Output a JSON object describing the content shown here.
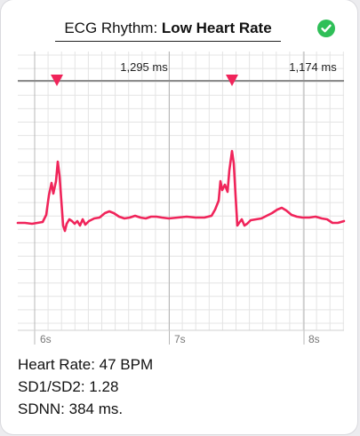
{
  "header": {
    "title_prefix": "ECG Rhythm:",
    "title_value": "Low Heart Rate",
    "status_icon": "checkmark-circle-icon",
    "status_color": "#2fbf58"
  },
  "chart": {
    "line_color": "#f0245a",
    "interval_labels": [
      "1,295 ms",
      "1,174 ms"
    ],
    "time_labels": [
      "6s",
      "7s",
      "8s"
    ]
  },
  "metrics": {
    "heart_rate": "Heart Rate: 47 BPM",
    "sd1_sd2": "SD1/SD2: 1.28",
    "sdnn": "SDNN: 384 ms."
  }
}
